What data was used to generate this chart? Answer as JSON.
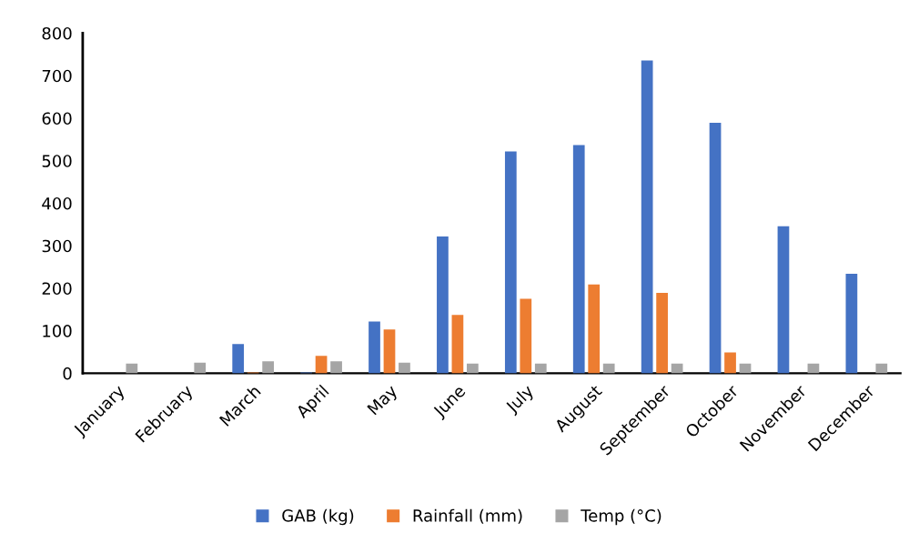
{
  "chart_data": {
    "type": "bar",
    "categories": [
      "January",
      "February",
      "March",
      "April",
      "May",
      "June",
      "July",
      "August",
      "September",
      "October",
      "November",
      "December"
    ],
    "series": [
      {
        "name": "GAB (kg)",
        "color": "#4472c4",
        "values": [
          0,
          0,
          69,
          2,
          122,
          322,
          522,
          537,
          736,
          589,
          346,
          234
        ]
      },
      {
        "name": "Rainfall (mm)",
        "color": "#ed7d31",
        "values": [
          0,
          0,
          2,
          41,
          103,
          137,
          175,
          209,
          189,
          49,
          0,
          0
        ]
      },
      {
        "name": "Temp (°C)",
        "color": "#a5a5a5",
        "values": [
          23,
          25,
          28,
          28,
          25,
          23,
          23,
          23,
          23,
          23,
          23,
          23
        ]
      }
    ],
    "ylim": [
      0,
      800
    ],
    "yticks": [
      0,
      100,
      200,
      300,
      400,
      500,
      600,
      700,
      800
    ],
    "grid": false,
    "legend": "bottom"
  }
}
